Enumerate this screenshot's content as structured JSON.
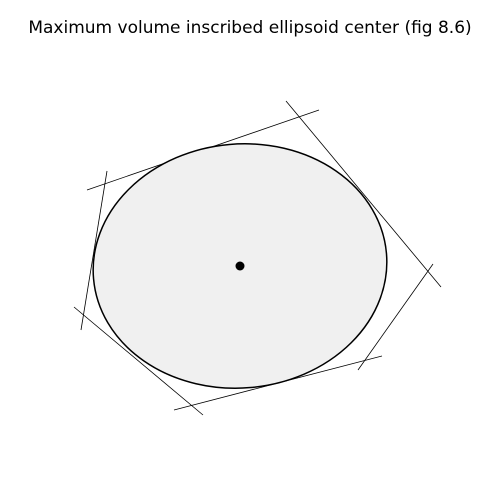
{
  "figure": {
    "title": "Maximum volume inscribed ellipsoid center (fig 8.6)"
  },
  "colors": {
    "ellipse_fill": "#f0f0f0",
    "stroke": "#000000",
    "center": "#000000",
    "background": "#ffffff"
  },
  "elements": {
    "ellipse": "maximum-volume-inscribed-ellipsoid",
    "center": "ellipsoid-center-point",
    "constraint_lines": 6
  }
}
